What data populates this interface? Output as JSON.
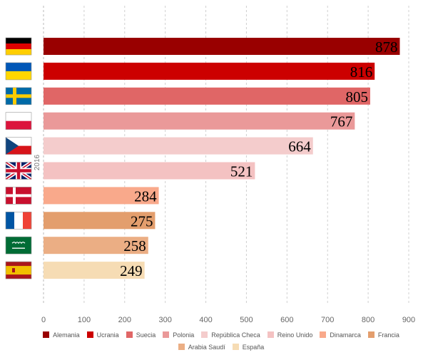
{
  "chart_data": {
    "type": "bar",
    "orientation": "horizontal",
    "group_label": "2016",
    "categories": [
      "Alemania",
      "Ucrania",
      "Suecia",
      "Polonia",
      "República Checa",
      "Reino Unido",
      "Dinamarca",
      "Francia",
      "Arabia Saudí",
      "España"
    ],
    "values": [
      878,
      816,
      805,
      767,
      664,
      521,
      284,
      275,
      258,
      249
    ],
    "colors": [
      "#990000",
      "#CC0000",
      "#E06666",
      "#EA9999",
      "#F4CCCC",
      "#F4C2C2",
      "#F9A98B",
      "#E39E6D",
      "#EBAE84",
      "#F6DCB4"
    ],
    "flags": [
      "germany-flag",
      "ukraine-flag",
      "sweden-flag",
      "poland-flag",
      "czech-flag",
      "uk-flag",
      "denmark-flag",
      "france-flag",
      "saudi-flag",
      "spain-flag"
    ],
    "xlim": [
      0,
      900
    ],
    "xticks": [
      0,
      100,
      200,
      300,
      400,
      500,
      600,
      700,
      800,
      900
    ],
    "grid": true,
    "legend_position": "bottom",
    "title": "",
    "xlabel": "",
    "ylabel": ""
  }
}
